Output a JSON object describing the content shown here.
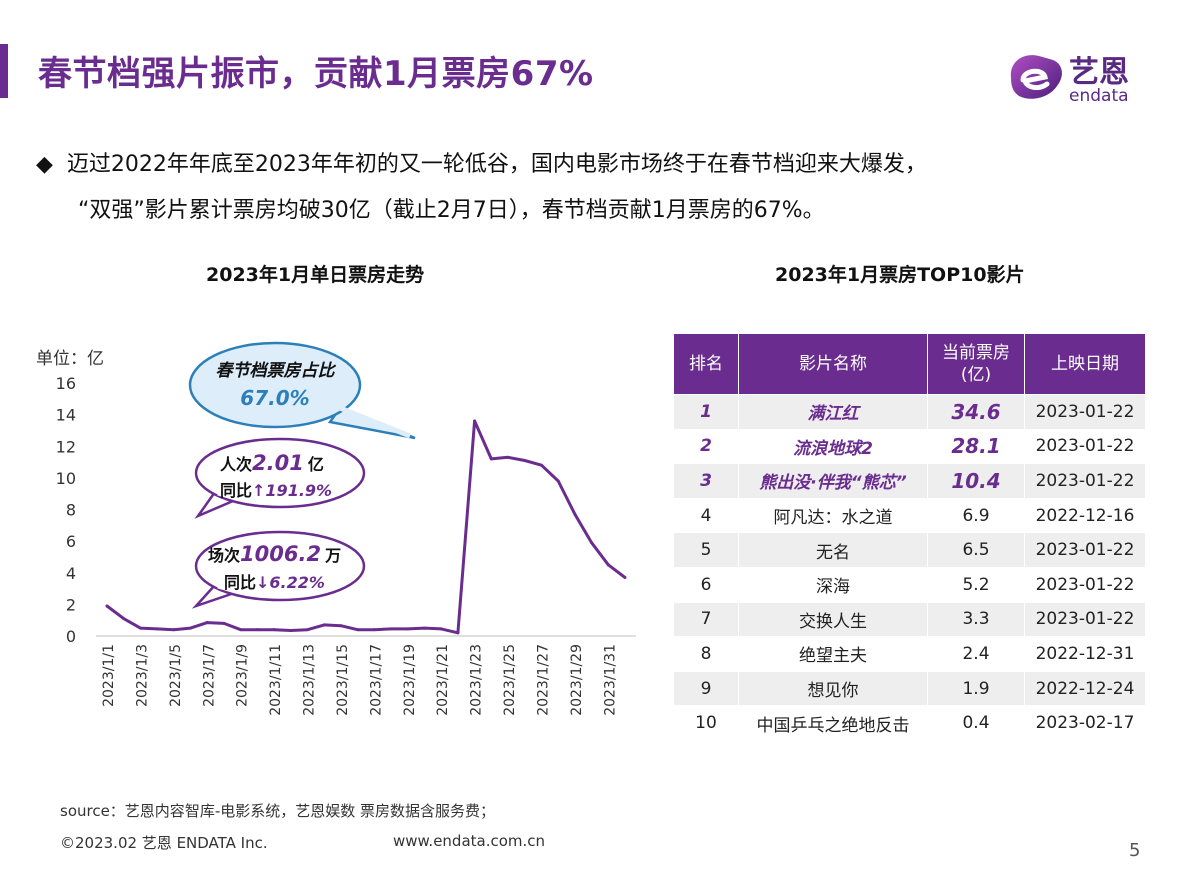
{
  "header": {
    "title": "春节档强片振市，贡献1月票房67%",
    "logo_text": "艺恩",
    "logo_sub": "endata",
    "accent_color": "#6a2d8f"
  },
  "intro": {
    "bullet": "◆",
    "line1": "迈过2022年年底至2023年年初的又一轮低谷，国内电影市场终于在春节档迎来大爆发，",
    "line2": "“双强”影片累计票房均破30亿（截止2月7日），春节档贡献1月票房的67%。"
  },
  "chart_data": {
    "type": "line",
    "title": "2023年1月单日票房走势",
    "ylabel": "单位：亿",
    "ylim": [
      0,
      16
    ],
    "yticks": [
      "16",
      "14",
      "12",
      "10",
      "8",
      "6",
      "4",
      "2",
      "0"
    ],
    "x_tick_labels": [
      "2023/1/1",
      "2023/1/3",
      "2023/1/5",
      "2023/1/7",
      "2023/1/9",
      "2023/1/11",
      "2023/1/13",
      "2023/1/15",
      "2023/1/17",
      "2023/1/19",
      "2023/1/21",
      "2023/1/23",
      "2023/1/25",
      "2023/1/27",
      "2023/1/29",
      "2023/1/31"
    ],
    "series": [
      {
        "color": "#6a2d8f",
        "values": [
          1.9,
          1.1,
          0.5,
          0.45,
          0.4,
          0.5,
          0.85,
          0.8,
          0.4,
          0.4,
          0.4,
          0.35,
          0.4,
          0.7,
          0.65,
          0.4,
          0.4,
          0.45,
          0.45,
          0.5,
          0.45,
          0.2,
          13.6,
          11.2,
          11.3,
          11.1,
          10.8,
          9.8,
          7.7,
          5.9,
          4.5,
          3.7
        ]
      }
    ],
    "callouts": {
      "share": {
        "label": "春节档票房占比",
        "value": "67.0%"
      },
      "admissions": {
        "prefix": "人次",
        "value": "2.01",
        "unit": "亿",
        "yoy_label": "同比",
        "yoy_value": "↑191.9%"
      },
      "screenings": {
        "prefix": "场次",
        "value": "1006.2",
        "unit": "万",
        "yoy_label": "同比",
        "yoy_value": "↓6.22%"
      }
    }
  },
  "table": {
    "title": "2023年1月票房TOP10影片",
    "headers": [
      "排名",
      "影片名称",
      "当前票房(亿)",
      "上映日期"
    ],
    "header_box": "当前票房",
    "header_unit": "(亿)",
    "rows": [
      {
        "rank": "1",
        "name": "满江红",
        "value": "34.6",
        "date": "2023-01-22"
      },
      {
        "rank": "2",
        "name": "流浪地球2",
        "value": "28.1",
        "date": "2023-01-22"
      },
      {
        "rank": "3",
        "name": "熊出没·伴我“熊芯”",
        "value": "10.4",
        "date": "2023-01-22"
      },
      {
        "rank": "4",
        "name": "阿凡达：水之道",
        "value": "6.9",
        "date": "2022-12-16"
      },
      {
        "rank": "5",
        "name": "无名",
        "value": "6.5",
        "date": "2023-01-22"
      },
      {
        "rank": "6",
        "name": "深海",
        "value": "5.2",
        "date": "2023-01-22"
      },
      {
        "rank": "7",
        "name": "交换人生",
        "value": "3.3",
        "date": "2023-01-22"
      },
      {
        "rank": "8",
        "name": "绝望主夫",
        "value": "2.4",
        "date": "2022-12-31"
      },
      {
        "rank": "9",
        "name": "想见你",
        "value": "1.9",
        "date": "2022-12-24"
      },
      {
        "rank": "10",
        "name": "中国乒乓之绝地反击",
        "value": "0.4",
        "date": "2023-02-17"
      }
    ]
  },
  "footer": {
    "source": "source：艺恩内容智库-电影系统，艺恩娱数    票房数据含服务费；",
    "copyright": "©2023.02 艺恩 ENDATA Inc.",
    "website": "www.endata.com.cn",
    "page": "5"
  }
}
